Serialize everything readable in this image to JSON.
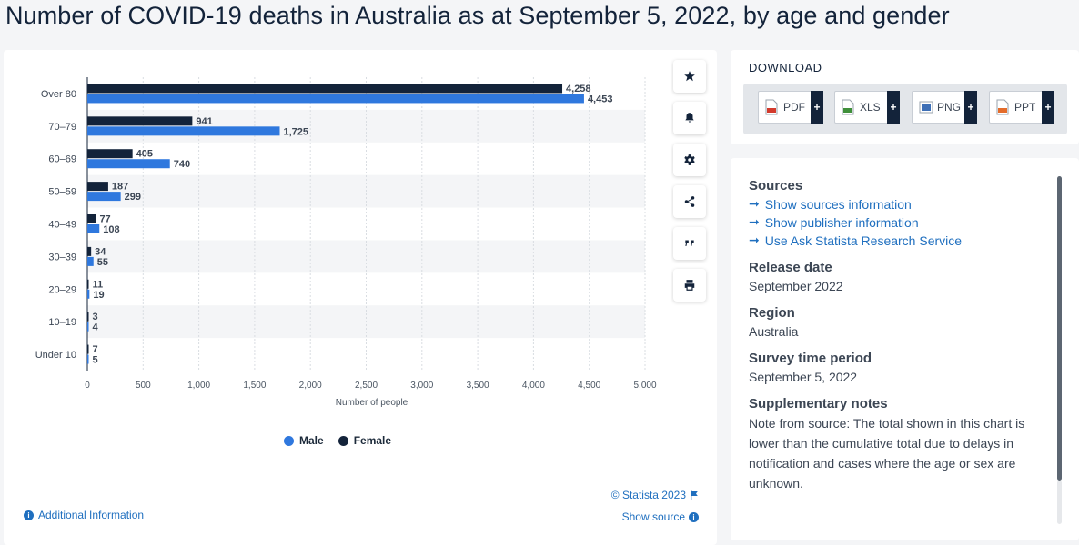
{
  "title": "Number of COVID-19 deaths in Australia as at September 5, 2022, by age and gender",
  "chart_data": {
    "type": "bar",
    "orientation": "horizontal",
    "categories": [
      "Over 80",
      "70-79",
      "60-69",
      "50-59",
      "40-49",
      "30-39",
      "20-29",
      "10-19",
      "Under 10"
    ],
    "series": [
      {
        "name": "Female",
        "color": "#13233a",
        "values": [
          4258,
          941,
          405,
          187,
          77,
          34,
          11,
          3,
          7
        ]
      },
      {
        "name": "Male",
        "color": "#2f78de",
        "values": [
          4453,
          1725,
          740,
          299,
          108,
          55,
          19,
          4,
          5
        ]
      }
    ],
    "value_labels": {
      "Female": [
        "4,258",
        "941",
        "405",
        "187",
        "77",
        "34",
        "11",
        "3",
        "7"
      ],
      "Male": [
        "4,453",
        "1,725",
        "740",
        "299",
        "108",
        "55",
        "19",
        "4",
        "5"
      ]
    },
    "xlabel": "Number of people",
    "ylabel": "",
    "xlim": [
      0,
      5000
    ],
    "xticks": [
      0,
      500,
      1000,
      1500,
      2000,
      2500,
      3000,
      3500,
      4000,
      4500,
      5000
    ],
    "xtick_labels": [
      "0",
      "500",
      "1,000",
      "1,500",
      "2,000",
      "2,500",
      "3,000",
      "3,500",
      "4,000",
      "4,500",
      "5,000"
    ],
    "grid": true,
    "legend_position": "bottom"
  },
  "legend": {
    "male_label": "Male",
    "female_label": "Female"
  },
  "copyright": "© Statista 2023",
  "show_source": "Show source",
  "additional_info": "Additional Information",
  "toolbar": {
    "icons": [
      "star-icon",
      "bell-icon",
      "gear-icon",
      "share-icon",
      "quote-icon",
      "print-icon"
    ]
  },
  "download": {
    "title": "DOWNLOAD",
    "buttons": [
      {
        "label": "PDF",
        "color": "#d33a2c"
      },
      {
        "label": "XLS",
        "color": "#3f8f3a"
      },
      {
        "label": "PNG",
        "color": "#3d6fb6"
      },
      {
        "label": "PPT",
        "color": "#e46c2b"
      }
    ],
    "plus": "+"
  },
  "info": {
    "sources_heading": "Sources",
    "links": [
      "Show sources information",
      "Show publisher information",
      "Use Ask Statista Research Service"
    ],
    "release_heading": "Release date",
    "release_value": "September 2022",
    "region_heading": "Region",
    "region_value": "Australia",
    "survey_heading": "Survey time period",
    "survey_value": "September 5, 2022",
    "notes_heading": "Supplementary notes",
    "notes_value": "Note from source: The total shown in this chart is lower than the cumulative total due to delays in notification and cases where the age or sex are unknown."
  }
}
